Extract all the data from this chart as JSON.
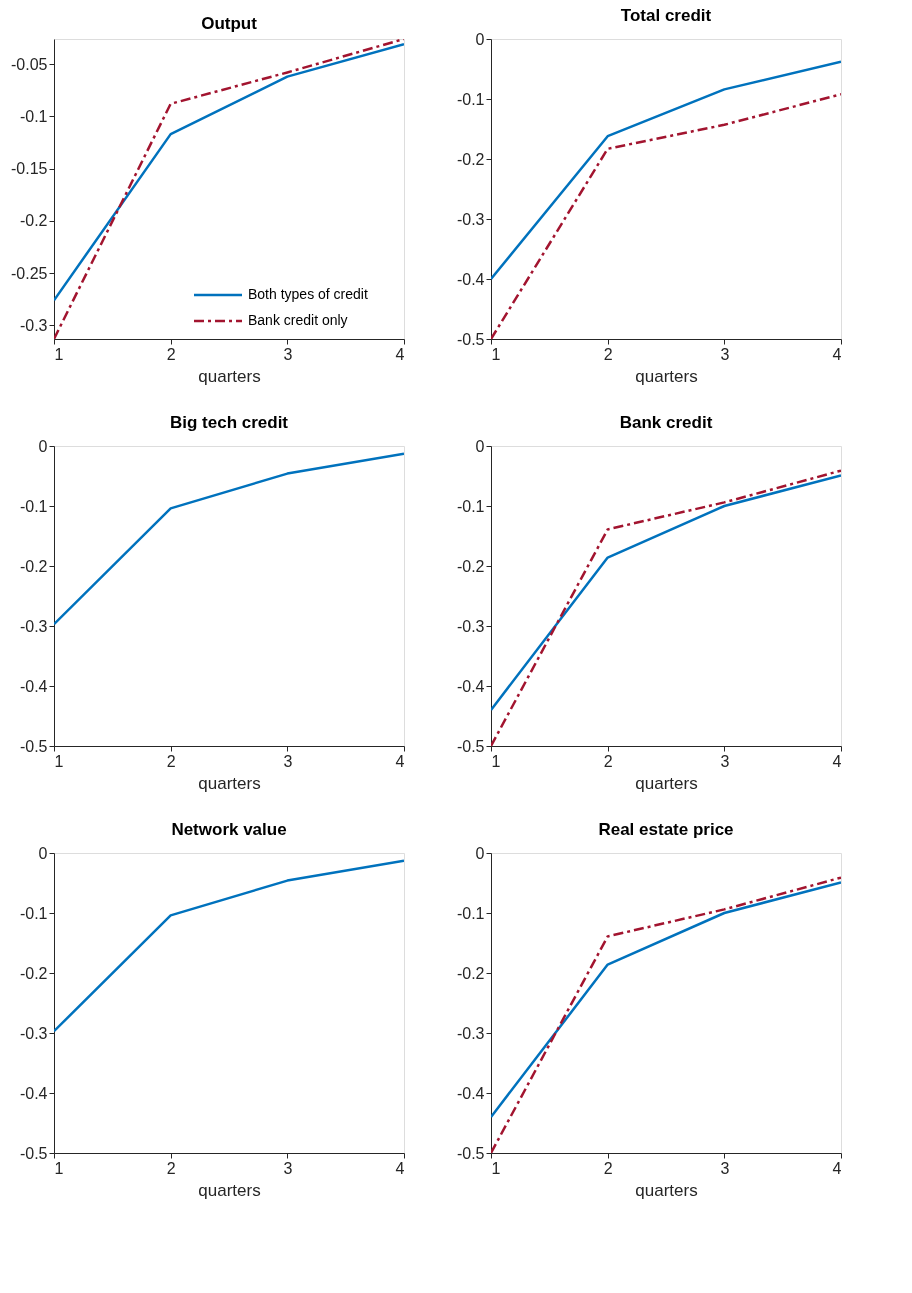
{
  "chart_data": [
    {
      "type": "line",
      "title": "Output",
      "xlabel": "quarters",
      "x": [
        1,
        2,
        3,
        4
      ],
      "xlim": [
        1,
        4
      ],
      "xticks": [
        1,
        2,
        3,
        4
      ],
      "ylim": [
        -0.313,
        -0.026
      ],
      "yticks": [
        -0.3,
        -0.25,
        -0.2,
        -0.15,
        -0.1,
        -0.05
      ],
      "grid": false,
      "legend": "bottom right",
      "series": [
        {
          "name": "Both types of credit",
          "color": "#0072bd",
          "line_style": "solid",
          "values": [
            -0.276,
            -0.117,
            -0.062,
            -0.031
          ]
        },
        {
          "name": "Bank credit only",
          "color": "#a2142f",
          "line_style": "dashed",
          "values": [
            -0.313,
            -0.088,
            -0.058,
            -0.026
          ]
        }
      ]
    },
    {
      "type": "line",
      "title": "Total credit",
      "xlabel": "quarters",
      "x": [
        1,
        2,
        3,
        4
      ],
      "xlim": [
        1,
        4
      ],
      "xticks": [
        1,
        2,
        3,
        4
      ],
      "ylim": [
        -0.5,
        0
      ],
      "yticks": [
        -0.5,
        -0.4,
        -0.3,
        -0.2,
        -0.1,
        0
      ],
      "grid": false,
      "series": [
        {
          "color": "#0072bd",
          "line_style": "solid",
          "values": [
            -0.4,
            -0.162,
            -0.084,
            -0.038
          ]
        },
        {
          "color": "#a2142f",
          "line_style": "dashed",
          "values": [
            -0.5,
            -0.183,
            -0.143,
            -0.092
          ]
        }
      ]
    },
    {
      "type": "line",
      "title": "Big tech credit",
      "xlabel": "quarters",
      "x": [
        1,
        2,
        3,
        4
      ],
      "xlim": [
        1,
        4
      ],
      "xticks": [
        1,
        2,
        3,
        4
      ],
      "ylim": [
        -0.5,
        0
      ],
      "yticks": [
        -0.5,
        -0.4,
        -0.3,
        -0.2,
        -0.1,
        0
      ],
      "grid": false,
      "series": [
        {
          "color": "#0072bd",
          "line_style": "solid",
          "values": [
            -0.297,
            -0.104,
            -0.046,
            -0.013
          ]
        }
      ]
    },
    {
      "type": "line",
      "title": "Bank credit",
      "xlabel": "quarters",
      "x": [
        1,
        2,
        3,
        4
      ],
      "xlim": [
        1,
        4
      ],
      "xticks": [
        1,
        2,
        3,
        4
      ],
      "ylim": [
        -0.5,
        0
      ],
      "yticks": [
        -0.5,
        -0.4,
        -0.3,
        -0.2,
        -0.1,
        0
      ],
      "grid": false,
      "series": [
        {
          "color": "#0072bd",
          "line_style": "solid",
          "values": [
            -0.44,
            -0.186,
            -0.1,
            -0.049
          ]
        },
        {
          "color": "#a2142f",
          "line_style": "dashed",
          "values": [
            -0.5,
            -0.139,
            -0.094,
            -0.041
          ]
        }
      ]
    },
    {
      "type": "line",
      "title": "Network value",
      "xlabel": "quarters",
      "x": [
        1,
        2,
        3,
        4
      ],
      "xlim": [
        1,
        4
      ],
      "xticks": [
        1,
        2,
        3,
        4
      ],
      "ylim": [
        -0.5,
        0
      ],
      "yticks": [
        -0.5,
        -0.4,
        -0.3,
        -0.2,
        -0.1,
        0
      ],
      "grid": false,
      "series": [
        {
          "color": "#0072bd",
          "line_style": "solid",
          "values": [
            -0.297,
            -0.104,
            -0.046,
            -0.013
          ]
        }
      ]
    },
    {
      "type": "line",
      "title": "Real estate price",
      "xlabel": "quarters",
      "x": [
        1,
        2,
        3,
        4
      ],
      "xlim": [
        1,
        4
      ],
      "xticks": [
        1,
        2,
        3,
        4
      ],
      "ylim": [
        -0.5,
        0
      ],
      "yticks": [
        -0.5,
        -0.4,
        -0.3,
        -0.2,
        -0.1,
        0
      ],
      "grid": false,
      "series": [
        {
          "color": "#0072bd",
          "line_style": "solid",
          "values": [
            -0.44,
            -0.186,
            -0.1,
            -0.049
          ]
        },
        {
          "color": "#a2142f",
          "line_style": "dashed",
          "values": [
            -0.5,
            -0.139,
            -0.094,
            -0.041
          ]
        }
      ]
    }
  ]
}
